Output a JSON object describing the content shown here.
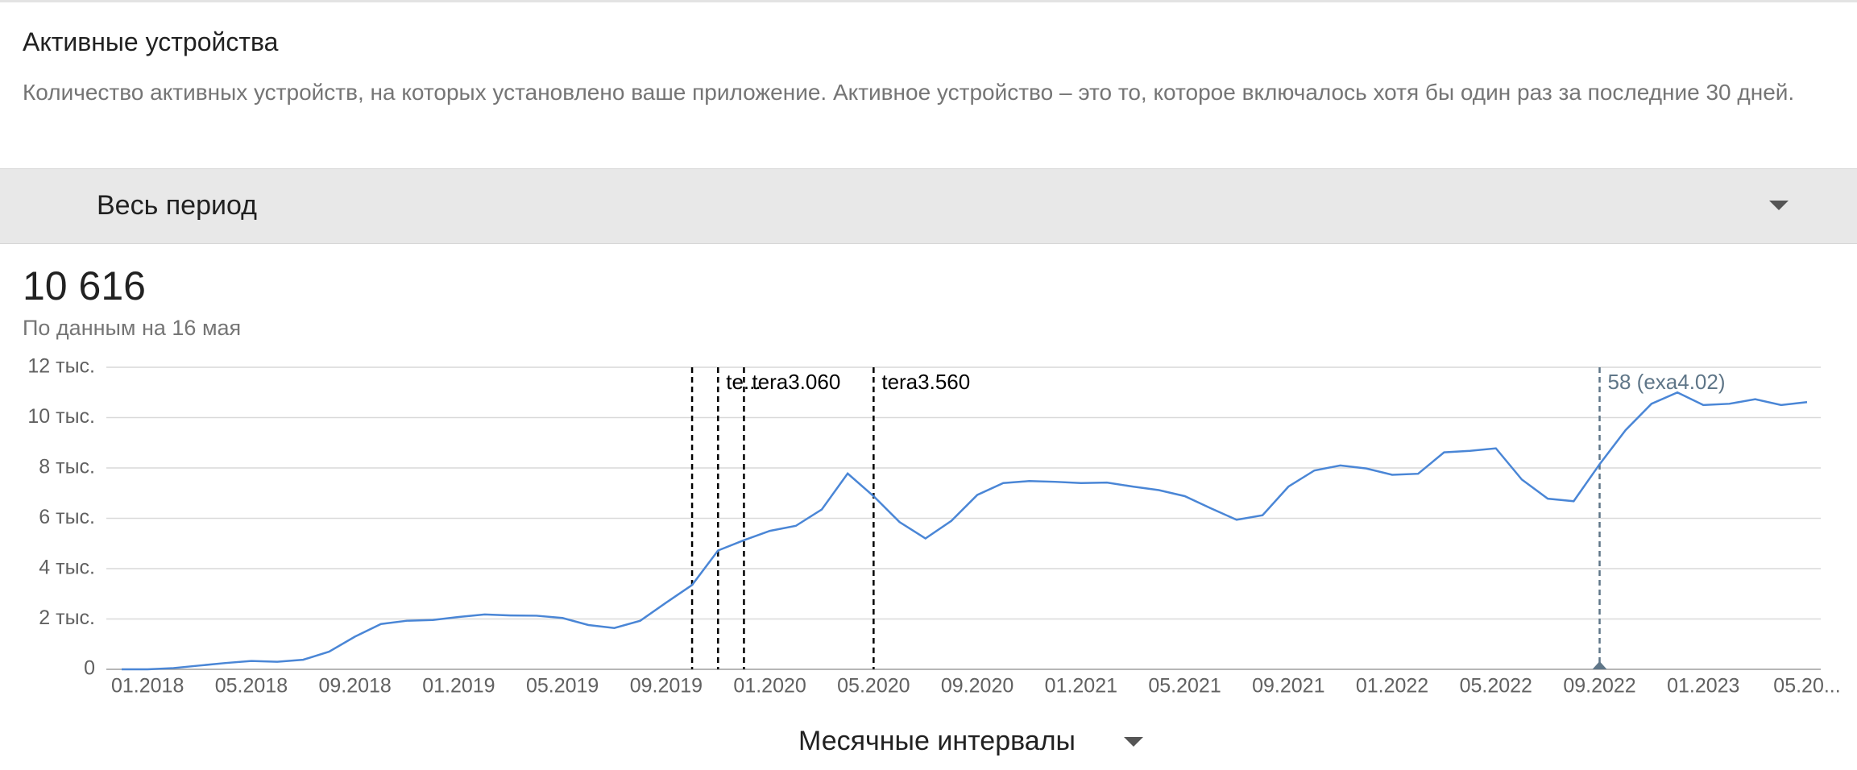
{
  "header": {
    "title": "Активные устройства",
    "description": "Количество активных устройств, на которых установлено ваше приложение. Активное устройство – это то, которое включалось хотя бы один раз за последние 30 дней."
  },
  "period": {
    "label": "Весь период"
  },
  "summary": {
    "value": "10 616",
    "note": "По данным на 16 мая"
  },
  "interval": {
    "label": "Месячные интервалы"
  },
  "chart_data": {
    "type": "line",
    "x": [
      "12.2017",
      "01.2018",
      "02.2018",
      "03.2018",
      "04.2018",
      "05.2018",
      "06.2018",
      "07.2018",
      "08.2018",
      "09.2018",
      "10.2018",
      "11.2018",
      "12.2018",
      "01.2019",
      "02.2019",
      "03.2019",
      "04.2019",
      "05.2019",
      "06.2019",
      "07.2019",
      "08.2019",
      "09.2019",
      "10.2019",
      "11.2019",
      "12.2019",
      "01.2020",
      "02.2020",
      "03.2020",
      "04.2020",
      "05.2020",
      "06.2020",
      "07.2020",
      "08.2020",
      "09.2020",
      "10.2020",
      "11.2020",
      "12.2020",
      "01.2021",
      "02.2021",
      "03.2021",
      "04.2021",
      "05.2021",
      "06.2021",
      "07.2021",
      "08.2021",
      "09.2021",
      "10.2021",
      "11.2021",
      "12.2021",
      "01.2022",
      "02.2022",
      "03.2022",
      "04.2022",
      "05.2022",
      "06.2022",
      "07.2022",
      "08.2022",
      "09.2022",
      "10.2022",
      "11.2022",
      "12.2022",
      "01.2023",
      "02.2023",
      "03.2023",
      "04.2023",
      "05.2023"
    ],
    "series": [
      {
        "color": "#4a86d6",
        "values": [
          0,
          0,
          50,
          150,
          250,
          330,
          300,
          380,
          700,
          1300,
          1800,
          1930,
          1960,
          2080,
          2180,
          2140,
          2130,
          2040,
          1760,
          1640,
          1930,
          2650,
          3350,
          4720,
          5130,
          5500,
          5700,
          6350,
          7780,
          6880,
          5850,
          5200,
          5900,
          6930,
          7400,
          7480,
          7450,
          7400,
          7420,
          7260,
          7120,
          6880,
          6400,
          5940,
          6120,
          7260,
          7900,
          8100,
          7980,
          7730,
          7770,
          8620,
          8680,
          8780,
          7540,
          6780,
          6680,
          8150,
          9500,
          10550,
          11000,
          10500,
          10550,
          10730,
          10500,
          10616
        ]
      }
    ],
    "ylim": [
      0,
      12000
    ],
    "yticks": [
      0,
      {
        "value": 2000,
        "label": "2 тыс."
      },
      {
        "value": 4000,
        "label": "4 тыс."
      },
      {
        "value": 6000,
        "label": "6 тыс."
      },
      {
        "value": 8000,
        "label": "8 тыс."
      },
      {
        "value": 10000,
        "label": "10 тыс."
      },
      {
        "value": 12000,
        "label": "12 тыс."
      }
    ],
    "xticks": [
      "01.2018",
      "05.2018",
      "09.2018",
      "01.2019",
      "05.2019",
      "09.2019",
      "01.2020",
      "05.2020",
      "09.2020",
      "01.2021",
      "05.2021",
      "09.2021",
      "01.2022",
      "05.2022",
      "09.2022",
      "01.2023",
      {
        "value": "05.2023",
        "label": "05.20..."
      }
    ],
    "grid": true,
    "annotations": [
      {
        "x": "10.2019",
        "color": "#000000"
      },
      {
        "x": "11.2019",
        "label": "te...",
        "color": "#000000"
      },
      {
        "x": "12.2019",
        "label": "tera3.060",
        "color": "#000000"
      },
      {
        "x": "05.2020",
        "label": "tera3.560",
        "color": "#000000"
      },
      {
        "x": "09.2022",
        "label": "58 (exa4.02)",
        "color": "#5f7688"
      }
    ]
  }
}
